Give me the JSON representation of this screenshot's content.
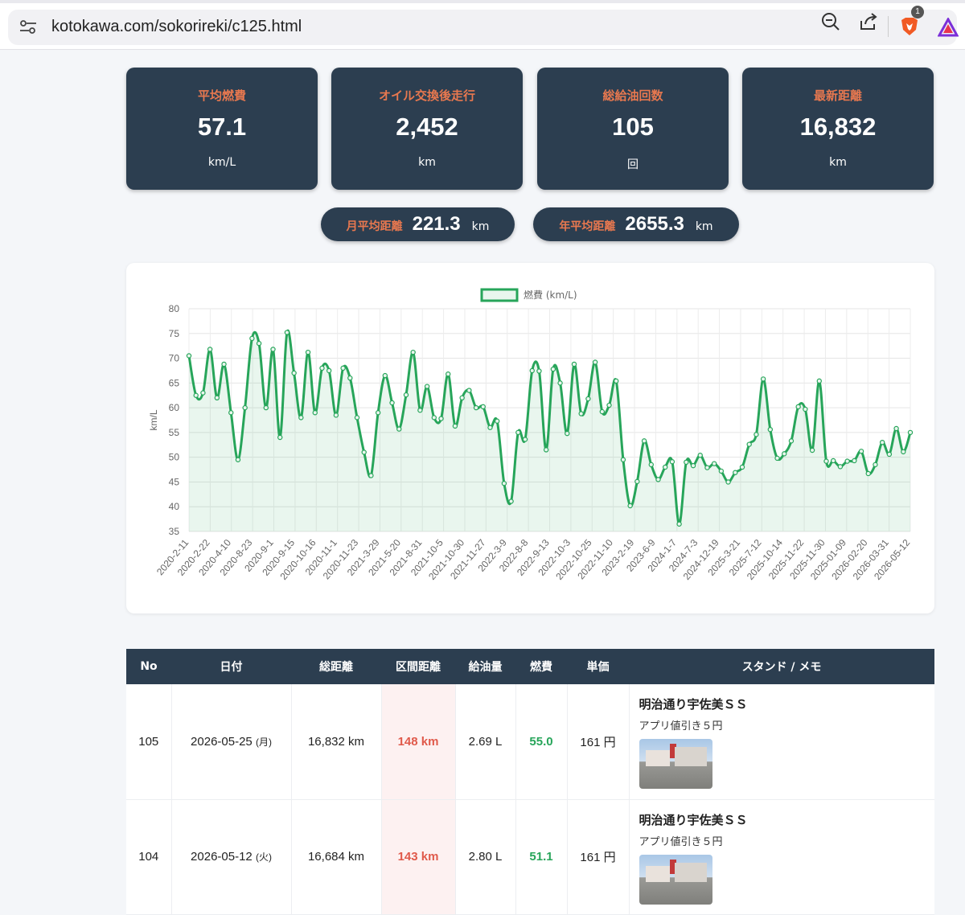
{
  "browser": {
    "url": "kotokawa.com/sokorireki/c125.html",
    "badge_count": "1"
  },
  "stats": [
    {
      "label": "平均燃費",
      "value": "57.1",
      "unit": "km/L"
    },
    {
      "label": "オイル交換後走行",
      "value": "2,452",
      "unit": "km"
    },
    {
      "label": "総給油回数",
      "value": "105",
      "unit": "回"
    },
    {
      "label": "最新距離",
      "value": "16,832",
      "unit": "km"
    }
  ],
  "pills": [
    {
      "label": "月平均距離",
      "value": "221.3",
      "unit": "km"
    },
    {
      "label": "年平均距離",
      "value": "2655.3",
      "unit": "km"
    }
  ],
  "chart_data": {
    "type": "area",
    "series_name": "燃費 (km/L)",
    "ylabel": "km/L",
    "ylim": [
      35,
      80
    ],
    "yticks": [
      35,
      40,
      45,
      50,
      55,
      60,
      65,
      70,
      75,
      80
    ],
    "xtick_labels": [
      "2020-2-11",
      "2020-2-22",
      "2020-4-10",
      "2020-8-23",
      "2020-9-1",
      "2020-9-15",
      "2020-10-16",
      "2020-11-1",
      "2020-11-23",
      "2021-3-29",
      "2021-5-20",
      "2021-8-31",
      "2021-10-5",
      "2021-10-30",
      "2021-11-27",
      "2022-3-9",
      "2022-8-8",
      "2022-9-13",
      "2022-10-3",
      "2022-10-25",
      "2022-11-10",
      "2023-2-19",
      "2023-6-9",
      "2024-1-7",
      "2024-7-3",
      "2024-12-19",
      "2025-3-21",
      "2025-7-12",
      "2025-10-14",
      "2025-11-22",
      "2025-11-30",
      "2025-01-09",
      "2026-02-20",
      "2026-03-31",
      "2026-05-12"
    ],
    "values": [
      70.5,
      62.5,
      63,
      71.8,
      62,
      68.8,
      59,
      49.5,
      60,
      74,
      73,
      60,
      71.8,
      54,
      75.2,
      67,
      58,
      71.2,
      59,
      68,
      67.5,
      58.5,
      68,
      66,
      58,
      51,
      46.3,
      59,
      66.5,
      61,
      55.7,
      62.6,
      71.2,
      59.5,
      64.3,
      58,
      57.8,
      66.8,
      56.3,
      62,
      63.5,
      60,
      60.2,
      56,
      57.3,
      44.7,
      41.1,
      55,
      53.6,
      67.5,
      67.4,
      51.5,
      67.8,
      65,
      54.8,
      68.8,
      58.8,
      61.8,
      69.2,
      59.2,
      60.5,
      65.4,
      49.5,
      40.2,
      45.1,
      53.3,
      48.5,
      45.5,
      48,
      49.1,
      36.5,
      49,
      48.3,
      50.4,
      47.9,
      48.7,
      47.2,
      45,
      46.9,
      48,
      52.6,
      54.6,
      65.8,
      55.6,
      49.8,
      50.7,
      53.3,
      60.2,
      59.7,
      51.4,
      65.4,
      49.2,
      49.3,
      48.1,
      49.2,
      49.3,
      51.2,
      46.7,
      48.5,
      53,
      50.6,
      55.8,
      51.1,
      55
    ]
  },
  "table": {
    "headers": [
      "No",
      "日付",
      "総距離",
      "区間距離",
      "給油量",
      "燃費",
      "単価",
      "スタンド / メモ"
    ],
    "rows": [
      {
        "no": "105",
        "date": "2026-05-25",
        "dow": "(月)",
        "total": "16,832 km",
        "segment": "148 km",
        "fuel": "2.69 L",
        "efficiency": "55.0",
        "price": "161 円",
        "stand": "明治通り宇佐美ＳＳ",
        "memo": "アプリ値引き５円"
      },
      {
        "no": "104",
        "date": "2026-05-12",
        "dow": "(火)",
        "total": "16,684 km",
        "segment": "143 km",
        "fuel": "2.80 L",
        "efficiency": "51.1",
        "price": "161 円",
        "stand": "明治通り宇佐美ＳＳ",
        "memo": "アプリ値引き５円"
      }
    ]
  },
  "colors": {
    "card_bg": "#2c3e50",
    "accent_orange": "#e8784f",
    "line_green": "#27a55a",
    "segment_red": "#e05a4b"
  }
}
